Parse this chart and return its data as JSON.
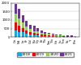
{
  "categories": [
    "Ce",
    "Nd",
    "La",
    "Pr",
    "Gd",
    "Eu",
    "Dy",
    "Er",
    "Tb",
    "Sm",
    "Yb",
    "Ho",
    "Lu",
    "Tm",
    "Sc",
    "Y",
    "Pm"
  ],
  "series": [
    {
      "label": "2018",
      "color": "#00b0f0",
      "values": [
        400,
        300,
        280,
        200,
        150,
        120,
        100,
        80,
        70,
        60,
        50,
        45,
        40,
        35,
        30,
        25,
        20
      ]
    },
    {
      "label": "2019",
      "color": "#ff0000",
      "values": [
        450,
        350,
        250,
        170,
        130,
        140,
        110,
        85,
        70,
        55,
        45,
        38,
        33,
        28,
        23,
        18,
        13
      ]
    },
    {
      "label": "2020",
      "color": "#92d050",
      "values": [
        500,
        450,
        350,
        250,
        200,
        100,
        150,
        100,
        75,
        65,
        55,
        45,
        35,
        30,
        25,
        22,
        17
      ]
    },
    {
      "label": "2021",
      "color": "#7030a0",
      "values": [
        600,
        550,
        400,
        350,
        250,
        300,
        175,
        125,
        100,
        80,
        65,
        50,
        40,
        35,
        30,
        25,
        20
      ]
    }
  ],
  "ylim": [
    0,
    2000
  ],
  "ytick_step": 500,
  "background_color": "#ffffff",
  "grid_color": "#c0c0c0",
  "legend_fontsize": 3.2,
  "axis_fontsize": 2.8,
  "bar_width": 0.65
}
